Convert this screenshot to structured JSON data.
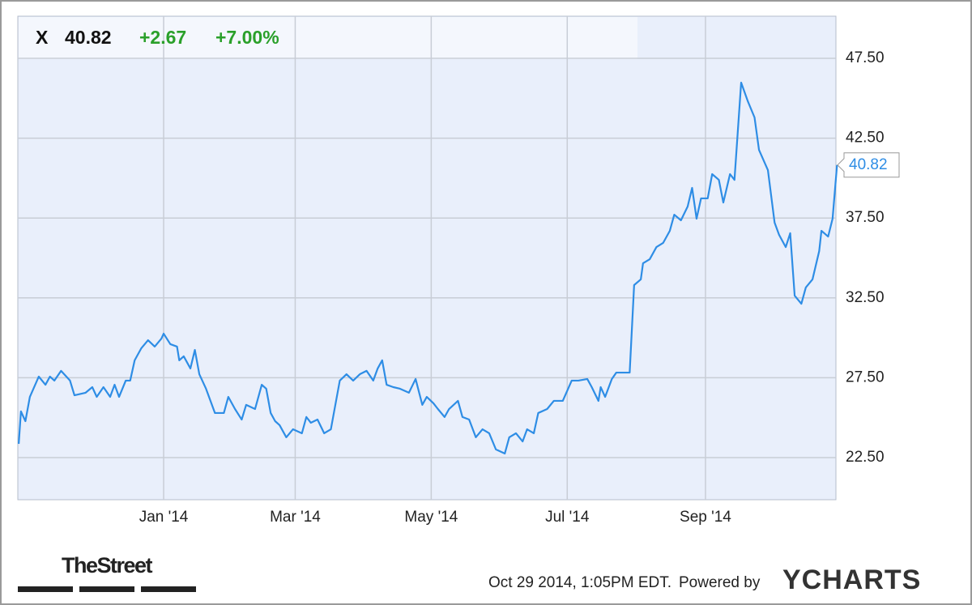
{
  "header": {
    "symbol": "X",
    "price_change": "+2.67",
    "percent_change": "+7.00%"
  },
  "chart_data": {
    "type": "line",
    "color": "#2e8de5",
    "x": [
      -65,
      -64,
      -62,
      -60,
      -56,
      -53,
      -51,
      -49,
      -46,
      -42,
      -40,
      -35,
      -32,
      -30,
      -27,
      -24,
      -22,
      -20,
      -17,
      -15,
      -13,
      -10,
      -7,
      -4,
      -1,
      0,
      3,
      6,
      7,
      9,
      12,
      14,
      16,
      19,
      23,
      27,
      29,
      32,
      35,
      37,
      41,
      44,
      46,
      48,
      50,
      52,
      55,
      58,
      62,
      64,
      66,
      69,
      72,
      75,
      77,
      79,
      82,
      85,
      88,
      91,
      94,
      96,
      98,
      100,
      103,
      106,
      110,
      113,
      116,
      118,
      121,
      123,
      126,
      128,
      132,
      134,
      137,
      140,
      143,
      146,
      149,
      153,
      155,
      158,
      161,
      163,
      166,
      168,
      172,
      175,
      179,
      183,
      186,
      190,
      192,
      195,
      196,
      198,
      201,
      203,
      207,
      209,
      211,
      214,
      215,
      218,
      221,
      224,
      227,
      229,
      232,
      235,
      237,
      239,
      241,
      244,
      246,
      249,
      251,
      254,
      256,
      259,
      262,
      265,
      267,
      271,
      274,
      276,
      279,
      281,
      283,
      286,
      288,
      291,
      294,
      295,
      298,
      300,
      302
    ],
    "values": [
      23.36,
      25.39,
      24.78,
      26.3,
      27.57,
      27.06,
      27.57,
      27.32,
      27.93,
      27.32,
      26.4,
      26.56,
      26.91,
      26.3,
      26.91,
      26.3,
      27.06,
      26.3,
      27.32,
      27.32,
      28.59,
      29.35,
      29.85,
      29.45,
      29.95,
      30.26,
      29.6,
      29.45,
      28.59,
      28.84,
      28.08,
      29.24,
      27.72,
      26.81,
      25.29,
      25.29,
      26.3,
      25.54,
      24.88,
      25.8,
      25.54,
      27.06,
      26.81,
      25.29,
      24.78,
      24.53,
      23.77,
      24.27,
      24.02,
      25.04,
      24.68,
      24.88,
      24.02,
      24.27,
      25.8,
      27.32,
      27.72,
      27.32,
      27.72,
      27.93,
      27.32,
      28.08,
      28.59,
      27.06,
      26.91,
      26.81,
      26.56,
      27.42,
      25.8,
      26.3,
      25.9,
      25.54,
      25.04,
      25.54,
      26.05,
      25.04,
      24.88,
      23.77,
      24.27,
      24.02,
      23.01,
      22.75,
      23.77,
      24.02,
      23.51,
      24.27,
      24.02,
      25.29,
      25.54,
      26.05,
      26.05,
      27.32,
      27.32,
      27.42,
      26.91,
      26.05,
      26.91,
      26.3,
      27.42,
      27.82,
      27.82,
      27.82,
      33.3,
      33.66,
      34.67,
      34.92,
      35.68,
      35.94,
      36.7,
      37.71,
      37.36,
      38.22,
      39.39,
      37.46,
      38.73,
      38.73,
      40.25,
      39.89,
      38.47,
      40.25,
      39.89,
      45.98,
      44.81,
      43.8,
      41.77,
      40.5,
      37.21,
      36.45,
      35.68,
      36.55,
      32.64,
      32.13,
      33.15,
      33.66,
      35.43,
      36.7,
      36.34,
      37.46,
      40.82
    ],
    "xlim": [
      -65.4,
      301.5
    ],
    "ylim": [
      19.86,
      50.14
    ],
    "xticks": [
      {
        "value": 0,
        "label": "Jan '14"
      },
      {
        "value": 59,
        "label": "Mar '14"
      },
      {
        "value": 120,
        "label": "May '14"
      },
      {
        "value": 181,
        "label": "Jul '14"
      },
      {
        "value": 243,
        "label": "Sep '14"
      }
    ],
    "yticks": [
      {
        "value": 22.5,
        "label": "22.50"
      },
      {
        "value": 27.5,
        "label": "27.50"
      },
      {
        "value": 32.5,
        "label": "32.50"
      },
      {
        "value": 37.5,
        "label": "37.50"
      },
      {
        "value": 42.5,
        "label": "42.50"
      },
      {
        "value": 47.5,
        "label": "47.50"
      }
    ],
    "grid": true
  },
  "footer": {
    "logo": "TheStreet",
    "timestamp": "Oct 29 2014, 1:05PM EDT.",
    "powered_by": "Powered by",
    "brand": "YCHARTS"
  }
}
